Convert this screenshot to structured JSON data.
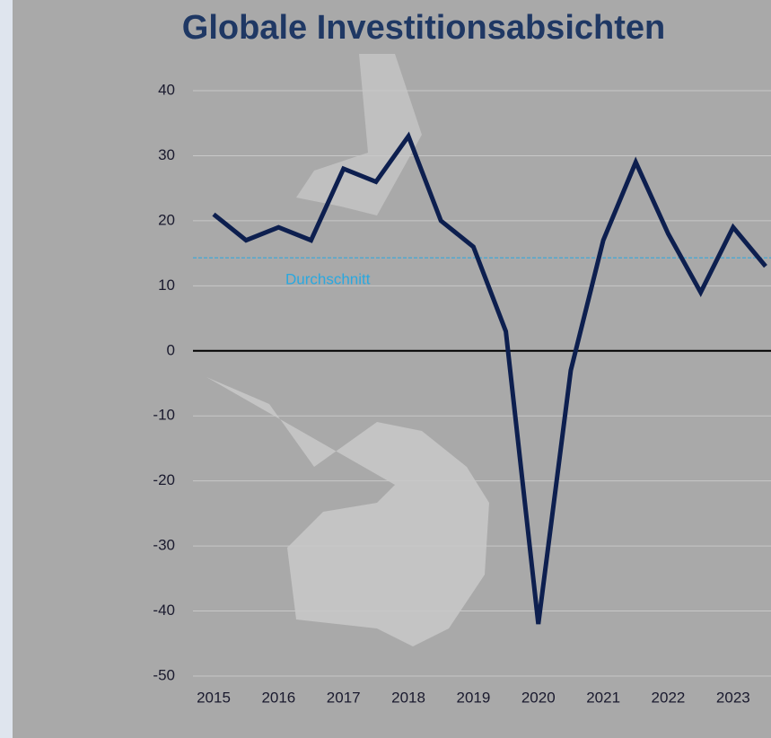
{
  "chart_data": {
    "type": "line",
    "title": "Globale Investitionsabsichten",
    "categories": [
      "2015",
      null,
      "2016",
      null,
      "2017",
      null,
      "2018",
      null,
      "2019",
      null,
      "2020",
      null,
      "2021",
      null,
      "2022",
      null,
      "2023",
      null
    ],
    "series": [
      {
        "name": "Investitionsabsichten",
        "color": "#0d1f4f",
        "values": [
          21,
          17,
          19,
          17,
          28,
          26,
          33,
          20,
          16,
          3,
          -42,
          -3,
          17,
          29,
          18,
          9,
          19,
          13
        ]
      }
    ],
    "ylim": [
      -50,
      40
    ],
    "yticks": [
      -50,
      -40,
      -30,
      -20,
      -10,
      0,
      10,
      20,
      30,
      40
    ],
    "grid": true,
    "reference_line": {
      "value": 14.3,
      "label": "Durchschnitt",
      "color": "#29a8e0"
    }
  }
}
